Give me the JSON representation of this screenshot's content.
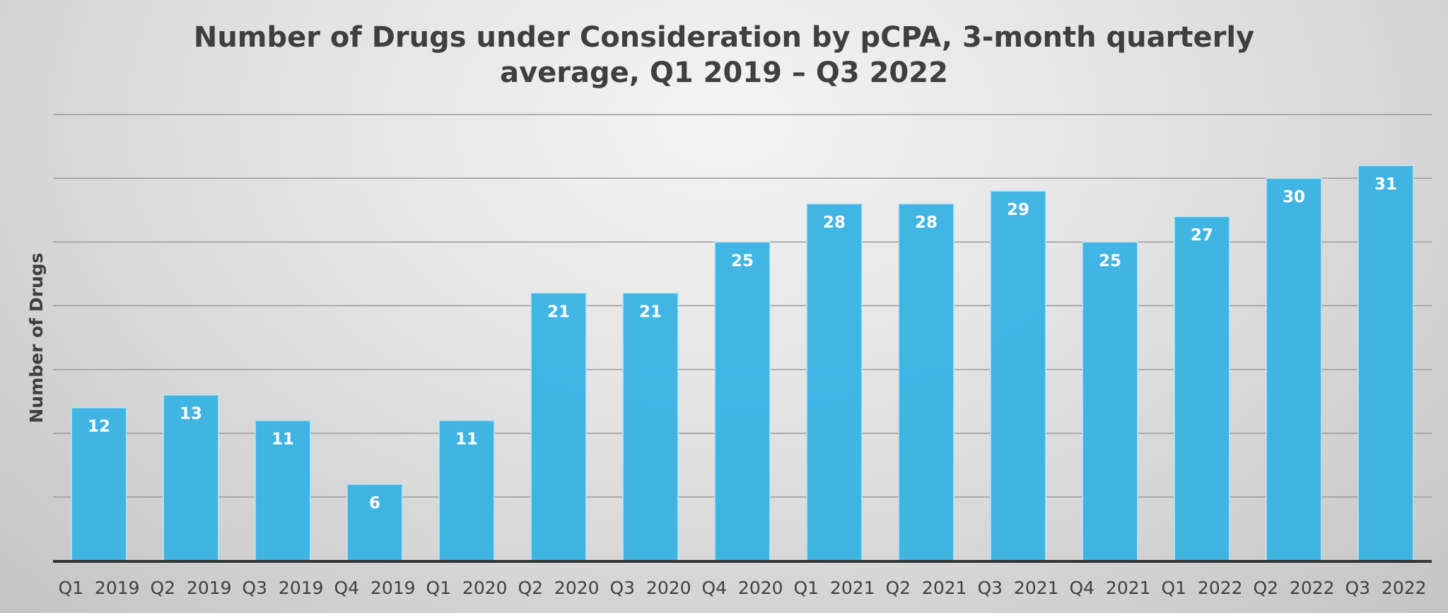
{
  "chart_data": {
    "type": "bar",
    "title_lines": [
      "Number of Drugs under Consideration by pCPA, 3-month quarterly",
      "average, Q1 2019 – Q3 2022"
    ],
    "xlabel": "",
    "ylabel": "Number of Drugs",
    "categories": [
      "Q1  2019",
      "Q2  2019",
      "Q3  2019",
      "Q4  2019",
      "Q1  2020",
      "Q2  2020",
      "Q3  2020",
      "Q4  2020",
      "Q1  2021",
      "Q2  2021",
      "Q3  2021",
      "Q4  2021",
      "Q1  2022",
      "Q2  2022",
      "Q3  2022"
    ],
    "values": [
      12,
      13,
      11,
      6,
      11,
      21,
      21,
      25,
      28,
      28,
      29,
      25,
      27,
      30,
      31
    ],
    "ylim": [
      0,
      35
    ],
    "ytick_step": 5,
    "y_tick_labels_shown": false,
    "grid": true,
    "legend": "none",
    "bar_color": "#3BB3E3"
  }
}
